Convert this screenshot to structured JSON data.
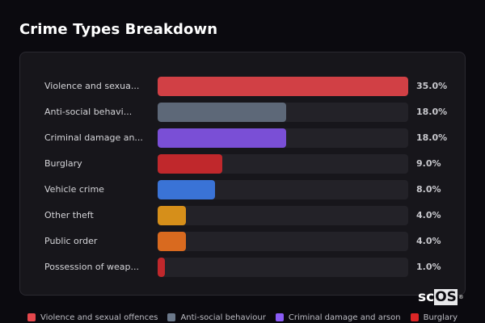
{
  "header": {
    "title": "Crime Types Breakdown"
  },
  "rows": [
    {
      "label": "Violence and sexua...",
      "value_text": "35.0%",
      "pct": 35.0,
      "color": "#d14045"
    },
    {
      "label": "Anti-social behavi...",
      "value_text": "18.0%",
      "pct": 18.0,
      "color": "#5d6878"
    },
    {
      "label": "Criminal damage an...",
      "value_text": "18.0%",
      "pct": 18.0,
      "color": "#7a4fd6"
    },
    {
      "label": "Burglary",
      "value_text": "9.0%",
      "pct": 9.0,
      "color": "#c0282c"
    },
    {
      "label": "Vehicle crime",
      "value_text": "8.0%",
      "pct": 8.0,
      "color": "#3a73d6"
    },
    {
      "label": "Other theft",
      "value_text": "4.0%",
      "pct": 4.0,
      "color": "#d68f1a"
    },
    {
      "label": "Public order",
      "value_text": "4.0%",
      "pct": 4.0,
      "color": "#d96a1f"
    },
    {
      "label": "Possession of weap...",
      "value_text": "1.0%",
      "pct": 1.0,
      "color": "#c0282c"
    }
  ],
  "legend": [
    {
      "label": "Violence and sexual offences",
      "color": "#e5474c"
    },
    {
      "label": "Anti-social behaviour",
      "color": "#6b788a"
    },
    {
      "label": "Criminal damage and arson",
      "color": "#8b5cf6"
    },
    {
      "label": "Burglary",
      "color": "#dc2626"
    }
  ],
  "logo": {
    "main": "sc",
    "boxed": "OS",
    "mark": "®"
  },
  "chart_data": {
    "type": "bar",
    "orientation": "horizontal",
    "title": "Crime Types Breakdown",
    "categories": [
      "Violence and sexual offences",
      "Anti-social behaviour",
      "Criminal damage and arson",
      "Burglary",
      "Vehicle crime",
      "Other theft",
      "Public order",
      "Possession of weapons"
    ],
    "values": [
      35.0,
      18.0,
      18.0,
      9.0,
      8.0,
      4.0,
      4.0,
      1.0
    ],
    "value_unit": "%",
    "xlabel": "",
    "ylabel": "",
    "xlim": [
      0,
      35
    ],
    "grid": false,
    "legend_position": "bottom",
    "legend_entries": [
      "Violence and sexual offences",
      "Anti-social behaviour",
      "Criminal damage and arson",
      "Burglary"
    ]
  }
}
